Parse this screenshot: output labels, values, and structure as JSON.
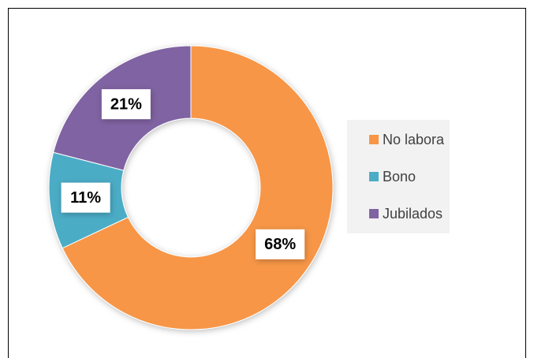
{
  "chart_data": {
    "type": "donut",
    "categories": [
      "No labora",
      "Bono",
      "Jubilados"
    ],
    "values": [
      68,
      11,
      21
    ],
    "value_labels": [
      "68%",
      "11%",
      "21%"
    ],
    "colors": [
      "#f79646",
      "#4bacc6",
      "#8064a2"
    ],
    "legend": "right"
  }
}
